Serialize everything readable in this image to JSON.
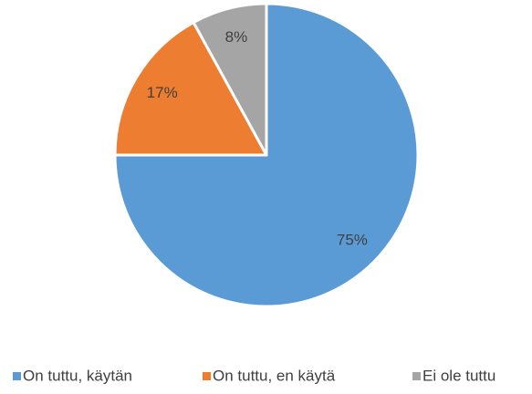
{
  "chart_data": {
    "type": "pie",
    "categories": [
      "On tuttu, käytän",
      "On tuttu, en käytä",
      "Ei ole tuttu"
    ],
    "values": [
      75,
      17,
      8
    ],
    "value_labels": [
      "75%",
      "17%",
      "8%"
    ],
    "colors": [
      "#5b9bd5",
      "#ed7d31",
      "#a5a5a5"
    ],
    "legend": "bottom"
  }
}
